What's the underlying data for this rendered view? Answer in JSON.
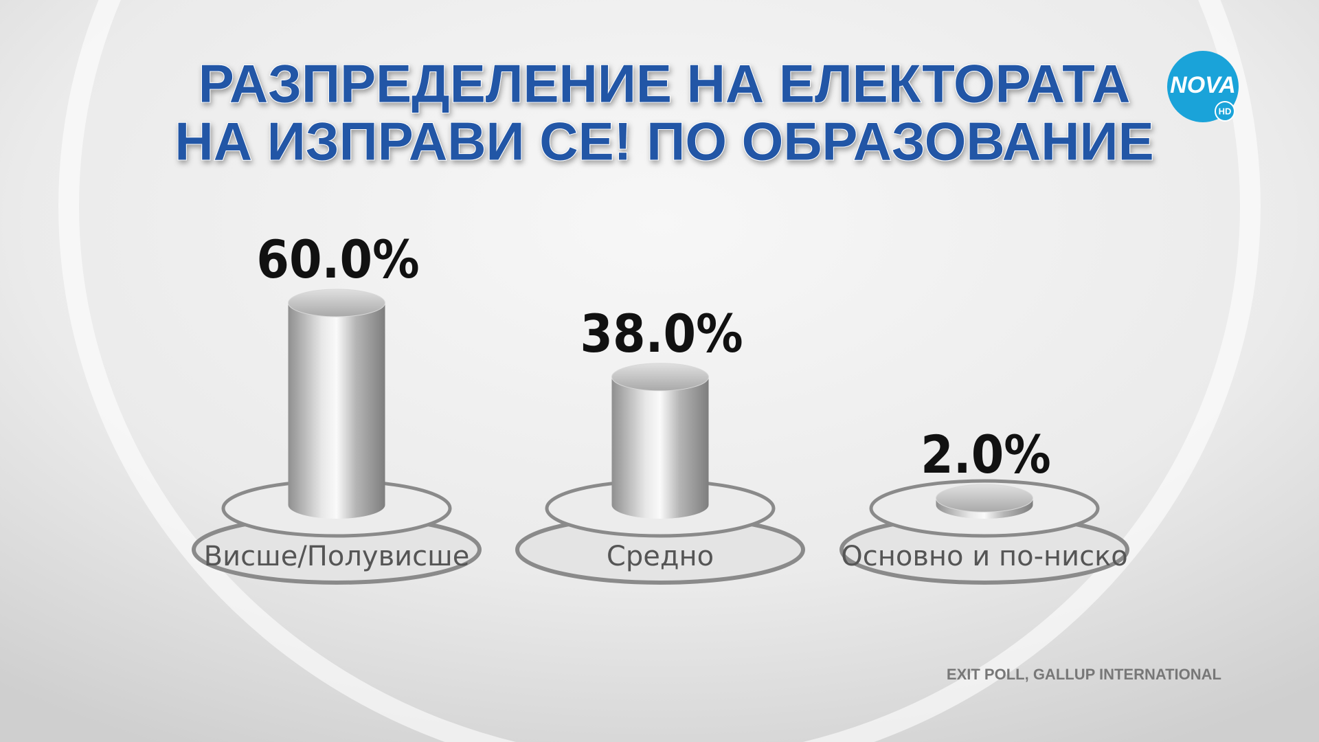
{
  "chart_data": {
    "type": "bar",
    "title": [
      "РАЗПРЕДЕЛЕНИЕ НА ЕЛЕКТОРАТА",
      "НА ИЗПРАВИ СЕ! ПО ОБРАЗОВАНИЕ"
    ],
    "categories": [
      "Висше/Полувисше",
      "Средно",
      "Основно и по-ниско"
    ],
    "values": [
      60.0,
      38.0,
      2.0
    ],
    "value_labels": [
      "60.0%",
      "38.0%",
      "2.0%"
    ],
    "color": "#b9b9b9",
    "source": "EXIT POLL, GALLUP INTERNATIONAL"
  },
  "logo": {
    "text": "NOVA",
    "badge": "HD"
  }
}
